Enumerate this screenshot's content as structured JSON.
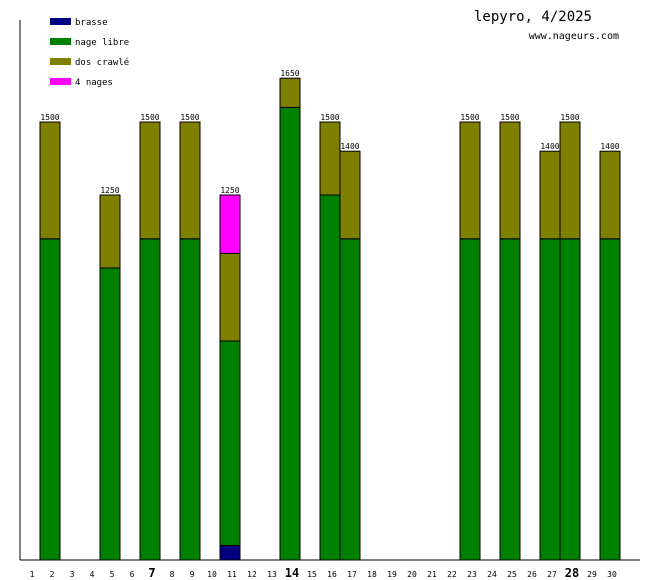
{
  "chart_data": {
    "type": "bar",
    "stacked": true,
    "title": "lepyro, 4/2025",
    "subtitle": "www.nageurs.com",
    "xlabel": "",
    "ylabel": "",
    "ylim": [
      0,
      1800
    ],
    "legend_position": "top-left",
    "categories": [
      1,
      2,
      3,
      4,
      5,
      6,
      7,
      8,
      9,
      10,
      11,
      12,
      13,
      14,
      15,
      16,
      17,
      18,
      19,
      20,
      21,
      22,
      23,
      24,
      25,
      26,
      27,
      28,
      29,
      30
    ],
    "bold_days": [
      7,
      14,
      28
    ],
    "series": [
      {
        "name": "brasse",
        "color": "#000080",
        "values": [
          0,
          0,
          0,
          0,
          0,
          0,
          0,
          0,
          0,
          0,
          50,
          0,
          0,
          0,
          0,
          0,
          0,
          0,
          0,
          0,
          0,
          0,
          0,
          0,
          0,
          0,
          0,
          0,
          0,
          0
        ]
      },
      {
        "name": "nage libre",
        "color": "#008000",
        "values": [
          0,
          1100,
          0,
          0,
          1000,
          0,
          1100,
          0,
          1100,
          0,
          700,
          0,
          0,
          1550,
          0,
          1250,
          1100,
          0,
          0,
          0,
          0,
          0,
          1100,
          0,
          1100,
          0,
          1100,
          1100,
          0,
          1100
        ]
      },
      {
        "name": "dos crawlé",
        "color": "#808000",
        "values": [
          0,
          400,
          0,
          0,
          250,
          0,
          400,
          0,
          400,
          0,
          300,
          0,
          0,
          100,
          0,
          250,
          300,
          0,
          0,
          0,
          0,
          0,
          400,
          0,
          400,
          0,
          300,
          400,
          0,
          300
        ]
      },
      {
        "name": "4 nages",
        "color": "#ff00ff",
        "values": [
          0,
          0,
          0,
          0,
          0,
          0,
          0,
          0,
          0,
          0,
          200,
          0,
          0,
          0,
          0,
          0,
          0,
          0,
          0,
          0,
          0,
          0,
          0,
          0,
          0,
          0,
          0,
          0,
          0,
          0
        ]
      }
    ],
    "totals": [
      0,
      1500,
      0,
      0,
      1250,
      0,
      1500,
      0,
      1500,
      0,
      1250,
      0,
      0,
      1650,
      0,
      1500,
      1400,
      0,
      0,
      0,
      0,
      0,
      1500,
      0,
      1500,
      0,
      1400,
      1500,
      0,
      1400
    ]
  }
}
